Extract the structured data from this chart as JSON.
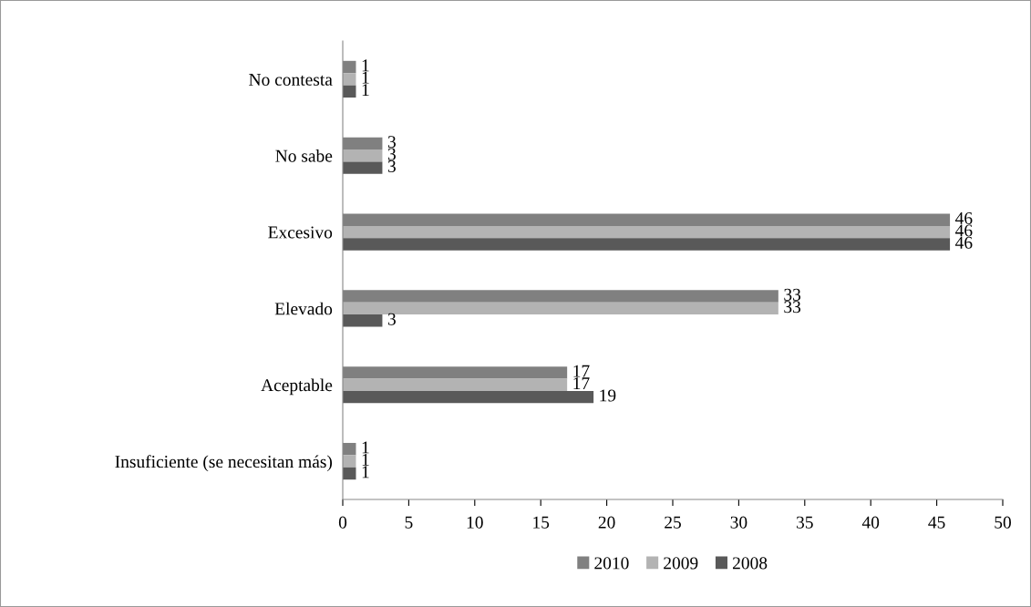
{
  "chart_data": {
    "type": "bar",
    "orientation": "horizontal",
    "categories": [
      "No contesta",
      "No sabe",
      "Excesivo",
      "Elevado",
      "Aceptable",
      "Insuficiente (se necesitan más)"
    ],
    "series": [
      {
        "name": "2010",
        "color": "#808080",
        "values": [
          1,
          3,
          46,
          33,
          17,
          1
        ]
      },
      {
        "name": "2009",
        "color": "#b3b3b3",
        "values": [
          1,
          3,
          46,
          33,
          17,
          1
        ]
      },
      {
        "name": "2008",
        "color": "#595959",
        "values": [
          1,
          3,
          46,
          3,
          19,
          1
        ]
      }
    ],
    "xlim": [
      0,
      50
    ],
    "xticks": [
      0,
      5,
      10,
      15,
      20,
      25,
      30,
      35,
      40,
      45,
      50
    ],
    "data_labels": true,
    "grid": false,
    "legend": "bottom"
  }
}
